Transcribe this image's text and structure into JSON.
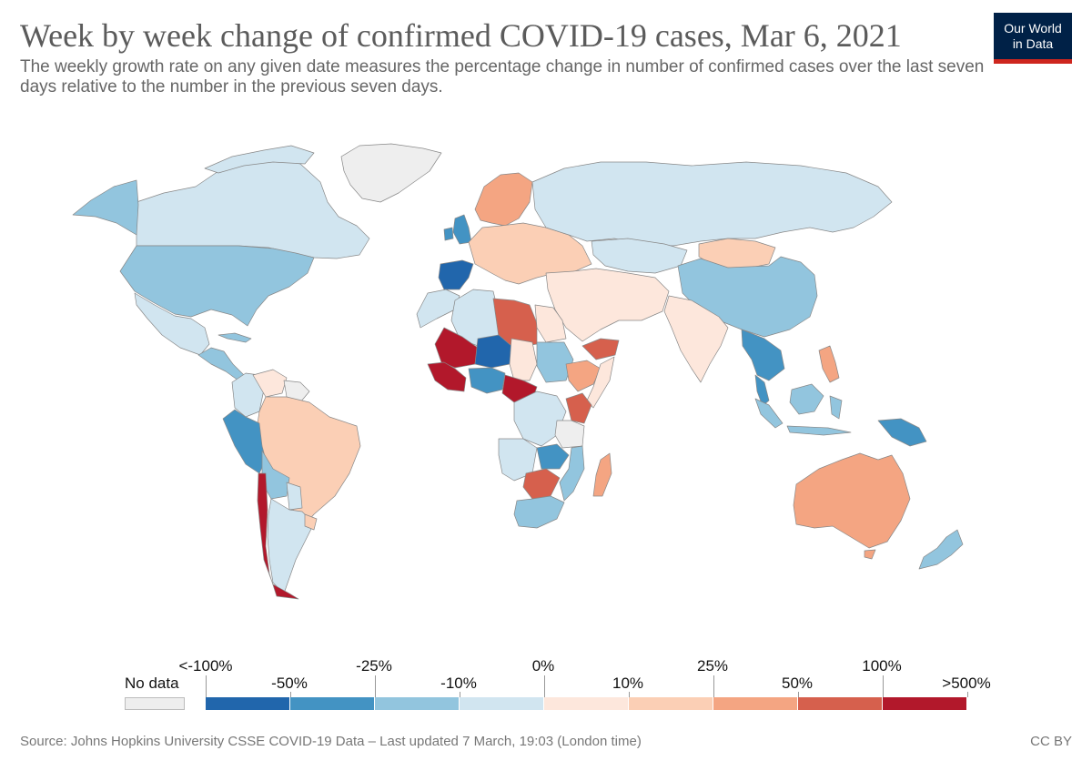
{
  "header": {
    "title": "Week by week change of confirmed COVID-19 cases, Mar 6, 2021",
    "subtitle": "The weekly growth rate on any given date measures the percentage change in number of confirmed cases over the last seven days relative to the number in the previous seven days."
  },
  "logo": {
    "line1": "Our World",
    "line2": "in Data"
  },
  "legend": {
    "no_data_label": "No data",
    "no_data_color": "#eeeeee",
    "bins": [
      {
        "color": "#2166ac"
      },
      {
        "color": "#4393c3"
      },
      {
        "color": "#92c5de"
      },
      {
        "color": "#d1e5f0"
      },
      {
        "color": "#fde7dc"
      },
      {
        "color": "#fbcfb5"
      },
      {
        "color": "#f4a582"
      },
      {
        "color": "#d6604d"
      },
      {
        "color": "#b2182b"
      }
    ],
    "upper_labels": [
      "<-100%",
      "-25%",
      "0%",
      "25%",
      "100%"
    ],
    "lower_labels": [
      "-50%",
      "-10%",
      "10%",
      "50%",
      ">500%"
    ]
  },
  "map_regions": [
    {
      "name": "Greenland",
      "color": "#eeeeee"
    },
    {
      "name": "Canada",
      "color": "#d1e5f0"
    },
    {
      "name": "Alaska",
      "color": "#92c5de"
    },
    {
      "name": "United States",
      "color": "#92c5de"
    },
    {
      "name": "Mexico",
      "color": "#d1e5f0"
    },
    {
      "name": "Central America",
      "color": "#92c5de"
    },
    {
      "name": "Colombia",
      "color": "#d1e5f0"
    },
    {
      "name": "Venezuela",
      "color": "#fde7dc"
    },
    {
      "name": "Guianas",
      "color": "#eeeeee"
    },
    {
      "name": "Brazil",
      "color": "#fbcfb5"
    },
    {
      "name": "Peru",
      "color": "#4393c3"
    },
    {
      "name": "Bolivia",
      "color": "#92c5de"
    },
    {
      "name": "Paraguay",
      "color": "#d1e5f0"
    },
    {
      "name": "Chile",
      "color": "#b2182b"
    },
    {
      "name": "Argentina",
      "color": "#d1e5f0"
    },
    {
      "name": "Uruguay",
      "color": "#fbcfb5"
    },
    {
      "name": "Spain",
      "color": "#2166ac"
    },
    {
      "name": "United Kingdom",
      "color": "#4393c3"
    },
    {
      "name": "Scandinavia",
      "color": "#f4a582"
    },
    {
      "name": "Europe",
      "color": "#fbcfb5"
    },
    {
      "name": "Russia",
      "color": "#d1e5f0"
    },
    {
      "name": "Kazakhstan",
      "color": "#d1e5f0"
    },
    {
      "name": "Mongolia",
      "color": "#fbcfb5"
    },
    {
      "name": "China",
      "color": "#92c5de"
    },
    {
      "name": "India",
      "color": "#fde7dc"
    },
    {
      "name": "Middle East",
      "color": "#fde7dc"
    },
    {
      "name": "Yemen",
      "color": "#d6604d"
    },
    {
      "name": "Southeast Asia",
      "color": "#4393c3"
    },
    {
      "name": "Indonesia",
      "color": "#92c5de"
    },
    {
      "name": "Papua New Guinea",
      "color": "#4393c3"
    },
    {
      "name": "Philippines",
      "color": "#f4a582"
    },
    {
      "name": "Australia",
      "color": "#f4a582"
    },
    {
      "name": "New Zealand",
      "color": "#92c5de"
    },
    {
      "name": "Libya",
      "color": "#d6604d"
    },
    {
      "name": "Algeria",
      "color": "#d1e5f0"
    },
    {
      "name": "Egypt",
      "color": "#fde7dc"
    },
    {
      "name": "Mali",
      "color": "#b2182b"
    },
    {
      "name": "Niger",
      "color": "#2166ac"
    },
    {
      "name": "Chad",
      "color": "#fde7dc"
    },
    {
      "name": "Sudan",
      "color": "#92c5de"
    },
    {
      "name": "Nigeria",
      "color": "#4393c3"
    },
    {
      "name": "Cameroon",
      "color": "#b2182b"
    },
    {
      "name": "Ethiopia",
      "color": "#f4a582"
    },
    {
      "name": "Somalia",
      "color": "#fde7dc"
    },
    {
      "name": "DR Congo",
      "color": "#d1e5f0"
    },
    {
      "name": "Kenya",
      "color": "#d6604d"
    },
    {
      "name": "Tanzania",
      "color": "#eeeeee"
    },
    {
      "name": "Angola",
      "color": "#d1e5f0"
    },
    {
      "name": "Zambia",
      "color": "#4393c3"
    },
    {
      "name": "Mozambique",
      "color": "#92c5de"
    },
    {
      "name": "Botswana",
      "color": "#d6604d"
    },
    {
      "name": "South Africa",
      "color": "#92c5de"
    },
    {
      "name": "Madagascar",
      "color": "#f4a582"
    },
    {
      "name": "Morocco",
      "color": "#d1e5f0"
    },
    {
      "name": "West Africa coast",
      "color": "#b2182b"
    }
  ],
  "footer": {
    "source": "Source: Johns Hopkins University CSSE COVID-19 Data – Last updated 7 March, 19:03 (London time)",
    "license": "CC BY"
  }
}
